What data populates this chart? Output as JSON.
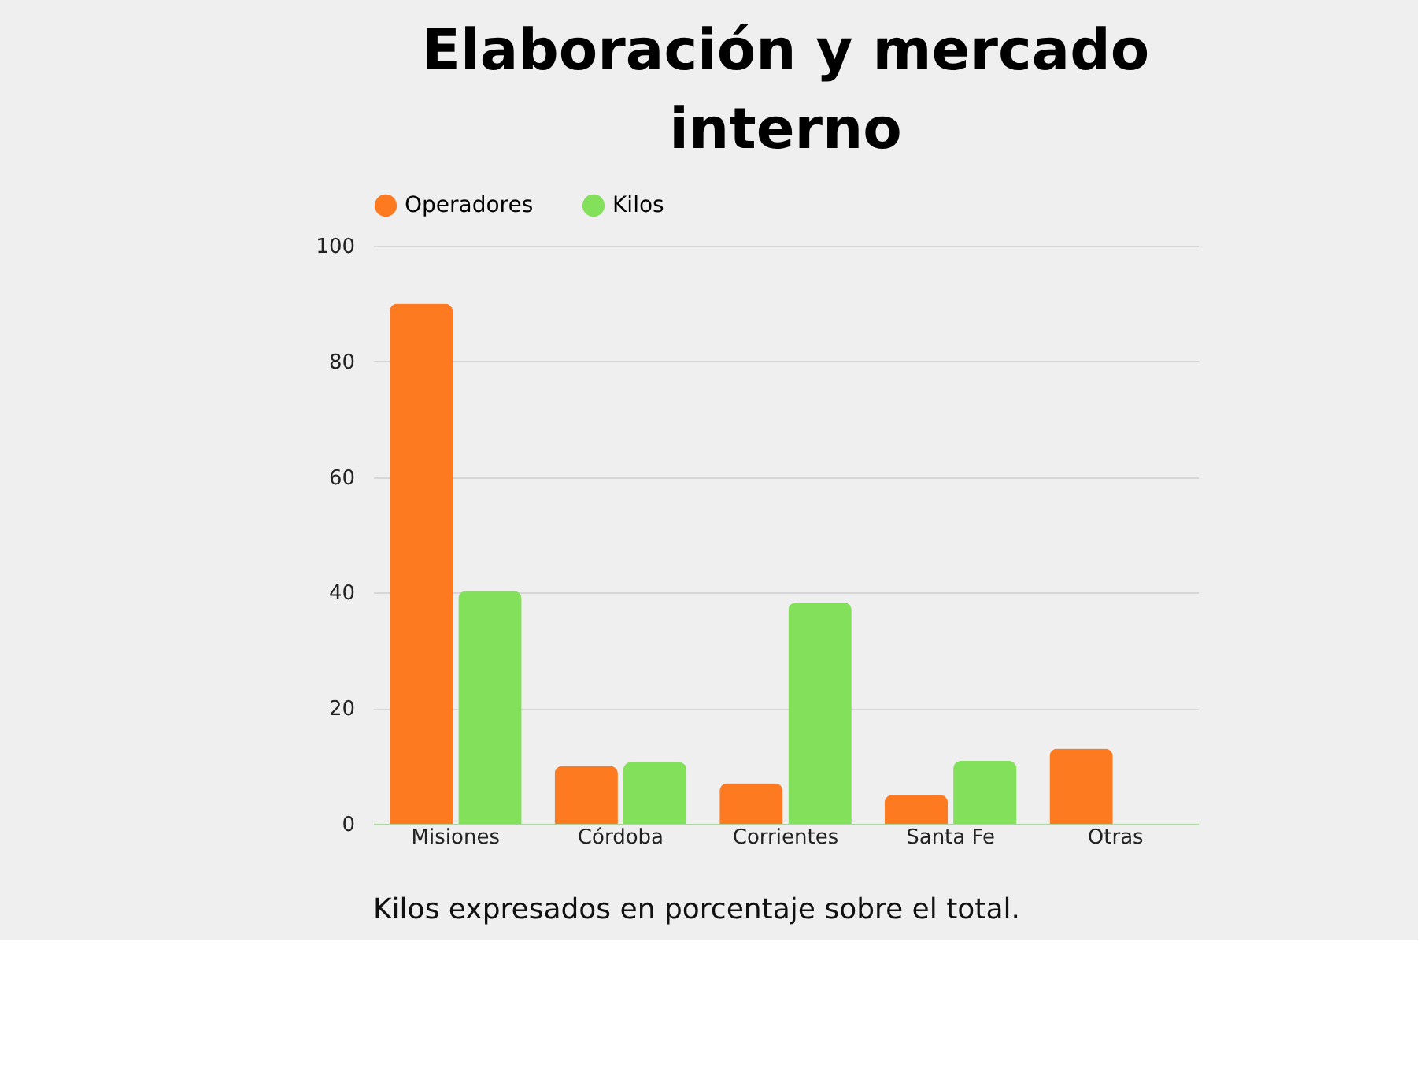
{
  "chart_data": {
    "type": "bar",
    "title": "Elaboración y mercado\ninterno",
    "categories": [
      "Misiones",
      "Córdoba",
      "Corrientes",
      "Santa Fe",
      "Otras"
    ],
    "series": [
      {
        "name": "Operadores",
        "color": "#fe7a21",
        "values": [
          90,
          10,
          7,
          5,
          13
        ]
      },
      {
        "name": "Kilos",
        "color": "#83e05a",
        "values": [
          40.3,
          10.7,
          38.3,
          10.9,
          0
        ]
      }
    ],
    "ylim": [
      0,
      100
    ],
    "yticks": [
      0,
      20,
      40,
      60,
      80,
      100
    ],
    "grid": "y",
    "legend": "top",
    "annotations": [
      "Kilos expresados en porcentaje sobre el total."
    ]
  }
}
